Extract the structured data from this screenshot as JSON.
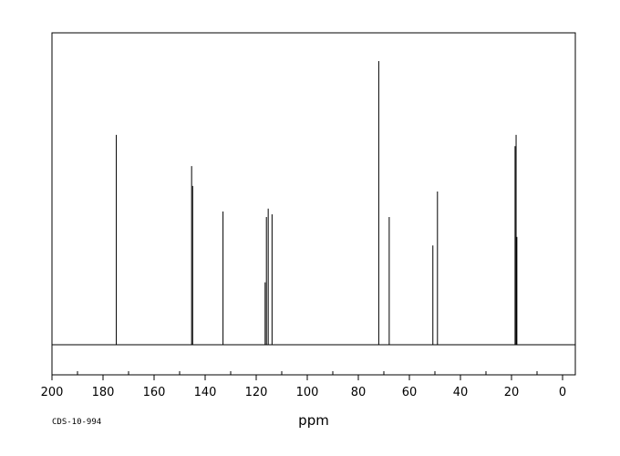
{
  "chart_data": {
    "type": "line",
    "title": "",
    "xlabel": "ppm",
    "ylabel": "",
    "xlim": [
      200,
      -5
    ],
    "ylim": [
      0,
      100
    ],
    "x_reversed": true,
    "grid": false,
    "legend": "none",
    "x_ticks": [
      200,
      180,
      160,
      140,
      120,
      100,
      80,
      60,
      40,
      20,
      0
    ],
    "x_tick_labels": [
      "200",
      "180",
      "160",
      "140",
      "120",
      "100",
      "80",
      "60",
      "40",
      "20",
      "0"
    ],
    "peaks": [
      {
        "ppm": 174.8,
        "intensity": 74
      },
      {
        "ppm": 145.3,
        "intensity": 63
      },
      {
        "ppm": 144.9,
        "intensity": 56
      },
      {
        "ppm": 133.0,
        "intensity": 47
      },
      {
        "ppm": 116.5,
        "intensity": 22
      },
      {
        "ppm": 116.0,
        "intensity": 45
      },
      {
        "ppm": 115.3,
        "intensity": 48
      },
      {
        "ppm": 113.8,
        "intensity": 46
      },
      {
        "ppm": 72.0,
        "intensity": 100
      },
      {
        "ppm": 67.9,
        "intensity": 45
      },
      {
        "ppm": 50.8,
        "intensity": 35
      },
      {
        "ppm": 49.0,
        "intensity": 54
      },
      {
        "ppm": 18.6,
        "intensity": 70
      },
      {
        "ppm": 18.2,
        "intensity": 74
      },
      {
        "ppm": 17.9,
        "intensity": 38
      }
    ]
  },
  "footer": {
    "code": "CDS-10-994"
  }
}
